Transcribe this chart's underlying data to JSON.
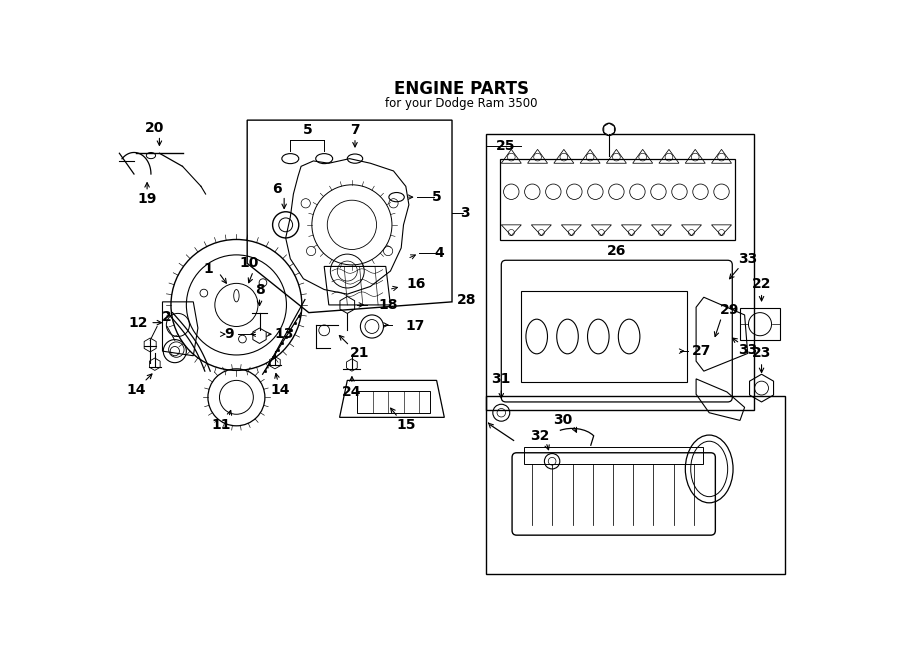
{
  "title": "ENGINE PARTS",
  "subtitle": "for your Dodge Ram 3500",
  "bg_color": "#ffffff",
  "line_color": "#000000",
  "fig_width": 9.0,
  "fig_height": 6.61,
  "dpi": 100
}
